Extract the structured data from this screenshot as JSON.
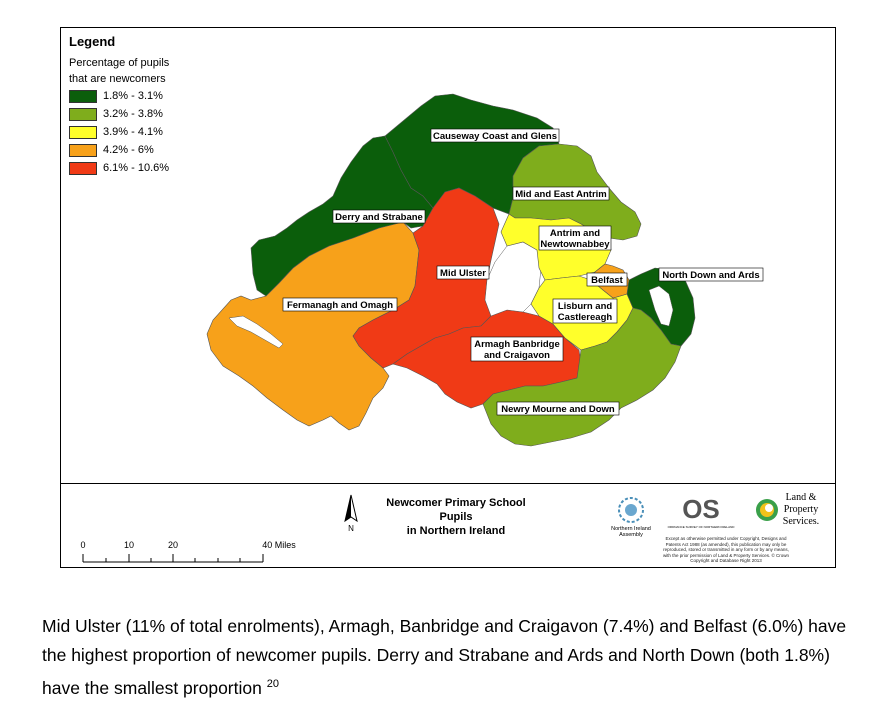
{
  "legend": {
    "title": "Legend",
    "subtitle_line1": "Percentage of pupils",
    "subtitle_line2": "that are newcomers",
    "items": [
      {
        "label": "1.8% - 3.1%",
        "color": "#0b5e0b"
      },
      {
        "label": "3.2% - 3.8%",
        "color": "#7fad1c"
      },
      {
        "label": "3.9% - 4.1%",
        "color": "#ffff2b"
      },
      {
        "label": "4.2% - 6%",
        "color": "#f7a11a"
      },
      {
        "label": "6.1% - 10.6%",
        "color": "#f03a16"
      }
    ]
  },
  "regions": {
    "causeway": "Causeway Coast and Glens",
    "mid_east_antrim": "Mid and East Antrim",
    "derry": "Derry and Strabane",
    "antrim_line1": "Antrim and",
    "antrim_line2": "Newtownabbey",
    "mid_ulster": "Mid Ulster",
    "belfast": "Belfast",
    "north_down": "North Down and Ards",
    "fermanagh": "Fermanagh and Omagh",
    "lisburn_line1": "Lisburn and",
    "lisburn_line2": "Castlereagh",
    "armagh_line1": "Armagh Banbridge",
    "armagh_line2": "and Craigavon",
    "newry": "Newry Mourne and Down"
  },
  "map_title_line1": "Newcomer Primary School Pupils",
  "map_title_line2": "in Northern Ireland",
  "north_label": "N",
  "scale": {
    "labels": [
      "0",
      "10",
      "20",
      "40 Miles"
    ]
  },
  "logos": {
    "assembly_line1": "Northern Ireland",
    "assembly_line2": "Assembly",
    "os_text": "OS",
    "os_sub": "ORDNANCE SURVEY OF NORTHERN IRELAND",
    "lps_line1": "Land &",
    "lps_line2": "Property",
    "lps_line3": "Services."
  },
  "copyright": "Except as otherwise permitted under Copyright, Designs and Patents Act 1988 (as amended), this publication may only be reproduced, stored or transmitted in any form or by any means, with the prior permission of Land & Property Services. © Crown Copyright and Database Right 2013",
  "caption": {
    "text": "Mid Ulster (11% of total enrolments), Armagh, Banbridge and Craigavon (7.4%) and Belfast (6.0%) have the highest proportion of newcomer pupils.  Derry and Strabane and Ards and North Down (both 1.8%) have the smallest proportion",
    "footnote": "20"
  }
}
